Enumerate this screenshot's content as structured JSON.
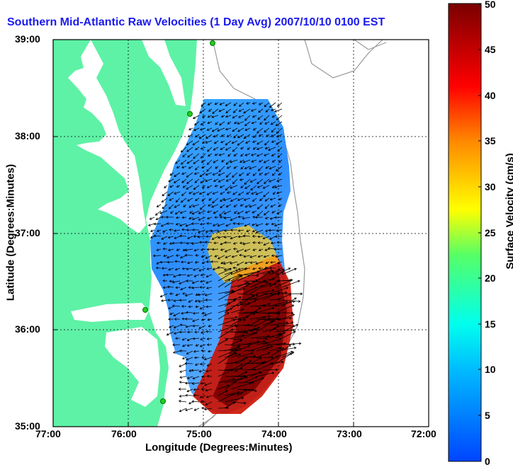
{
  "title": "Southern Mid-Atlantic Raw Velocities (1 Day Avg) 2007/10/10 0100 EST",
  "map": {
    "xlabel": "Longitude (Degrees:Minutes)",
    "ylabel": "Latitude (Degrees:Minutes)",
    "x_ticks": [
      "77:00",
      "76:00",
      "75:00",
      "74:00",
      "73:00",
      "72:00"
    ],
    "y_ticks": [
      "39:00",
      "38:00",
      "37:00",
      "36:00",
      "35:00"
    ],
    "colors": {
      "land": "#5ef2a6",
      "water": "#ffffff",
      "contour": "#999999",
      "arrow": "#000000",
      "station": "#22cc22"
    }
  },
  "colorbar": {
    "label": "Surface Velocity (cm/s)",
    "ticks": [
      "0",
      "5",
      "10",
      "15",
      "20",
      "25",
      "30",
      "35",
      "40",
      "45",
      "50"
    ],
    "min": 0,
    "max": 50
  }
}
